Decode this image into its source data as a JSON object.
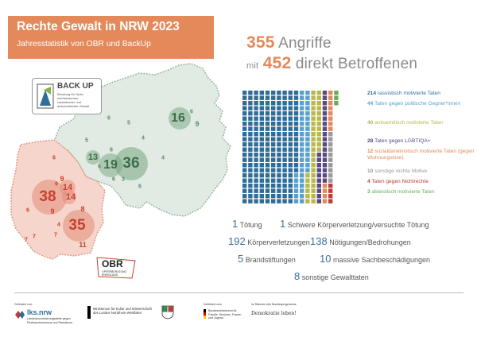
{
  "header": {
    "title": "Rechte Gewalt in NRW 2023",
    "subtitle": "Jahresstatistik von OBR und BackUp"
  },
  "headline": {
    "line1_num": "355",
    "line1_text": "Angriffe",
    "line2_prefix": "mit",
    "line2_num": "452",
    "line2_text": "direkt Betroffenen"
  },
  "colors": {
    "accent": "#e4895a",
    "region_red": "#f6d6cc",
    "region_green": "#e1ebe3",
    "waffle_blue": "#2f6d98"
  },
  "legend": [
    {
      "count": "214",
      "label": "rassistisch motivierte Taten",
      "color": "#2f6d98",
      "value": 214
    },
    {
      "count": "44",
      "label": "Taten gegen politische Gegner*innen",
      "color": "#58a1cb",
      "value": 44
    },
    {
      "count": "40",
      "label": "antisemitisch motivierte Taten",
      "color": "#b9b84a",
      "value": 40
    },
    {
      "count": "28",
      "label": "Taten gegen LGBTIQA+",
      "color": "#5a4a82",
      "value": 28
    },
    {
      "count": "12",
      "label": "sozialdarwinistisch motivierte Taten (gegen Wohnungslose)",
      "color": "#e4895a",
      "value": 12
    },
    {
      "count": "10",
      "label": "sonstige rechte Motive",
      "color": "#9a9a9a",
      "value": 10
    },
    {
      "count": "4",
      "label": "Taten gegen Nichtrechte",
      "color": "#c23a3a",
      "value": 4
    },
    {
      "count": "3",
      "label": "ableistisch motivierte Taten",
      "color": "#6bab5c",
      "value": 3
    }
  ],
  "stats": [
    {
      "num": "1",
      "label": "Tötung"
    },
    {
      "num": "1",
      "label": "Schwere Körperverletzung/versuchte Tötung"
    },
    {
      "num": "192",
      "label": "Körperverletzungen"
    },
    {
      "num": "138",
      "label": "Nötigungen/Bedrohungen"
    },
    {
      "num": "5",
      "label": "Brandstiftungen"
    },
    {
      "num": "10",
      "label": "massive Sachbeschädigungen"
    },
    {
      "num": "8",
      "label": "sonstige Gewalttaten"
    }
  ],
  "map": {
    "green_bubbles": [
      "36",
      "19",
      "16",
      "13",
      "8",
      "6",
      "9",
      "6",
      "6",
      "5",
      "4",
      "4",
      "3",
      "5",
      "6",
      "6"
    ],
    "red_bubbles": [
      "38",
      "35",
      "14",
      "14",
      "9",
      "9",
      "8",
      "11",
      "9",
      "7",
      "7",
      "7",
      "6",
      "6",
      "4"
    ]
  },
  "backup_logo": {
    "name": "BACK UP",
    "line1": "Beratung für Opfer",
    "line2": "rechtsextremer,",
    "line3": "rassistischer und",
    "line4": "antisemitischer Gewalt"
  },
  "obr_logo": {
    "name": "OBR",
    "line1": "OPFERBERATUNG",
    "line2": "RHEINLAND"
  },
  "footer": {
    "lks_caption": "Gefördert von:",
    "lks_name": "lks.nrw",
    "lks_sub": "Landeskoordinierungsstelle gegen Rechtsextremismus und Rassismus",
    "ministry": "Ministerium für Kultur und Wissenschaft des Landes Nordrhein-Westfalen",
    "bund_caption": "Gefördert vom",
    "bund": "Bundesministerium für Familie, Senioren, Frauen und Jugend",
    "demo_caption": "im Rahmen des Bundesprogramms",
    "demo": "Demokratie leben!"
  }
}
